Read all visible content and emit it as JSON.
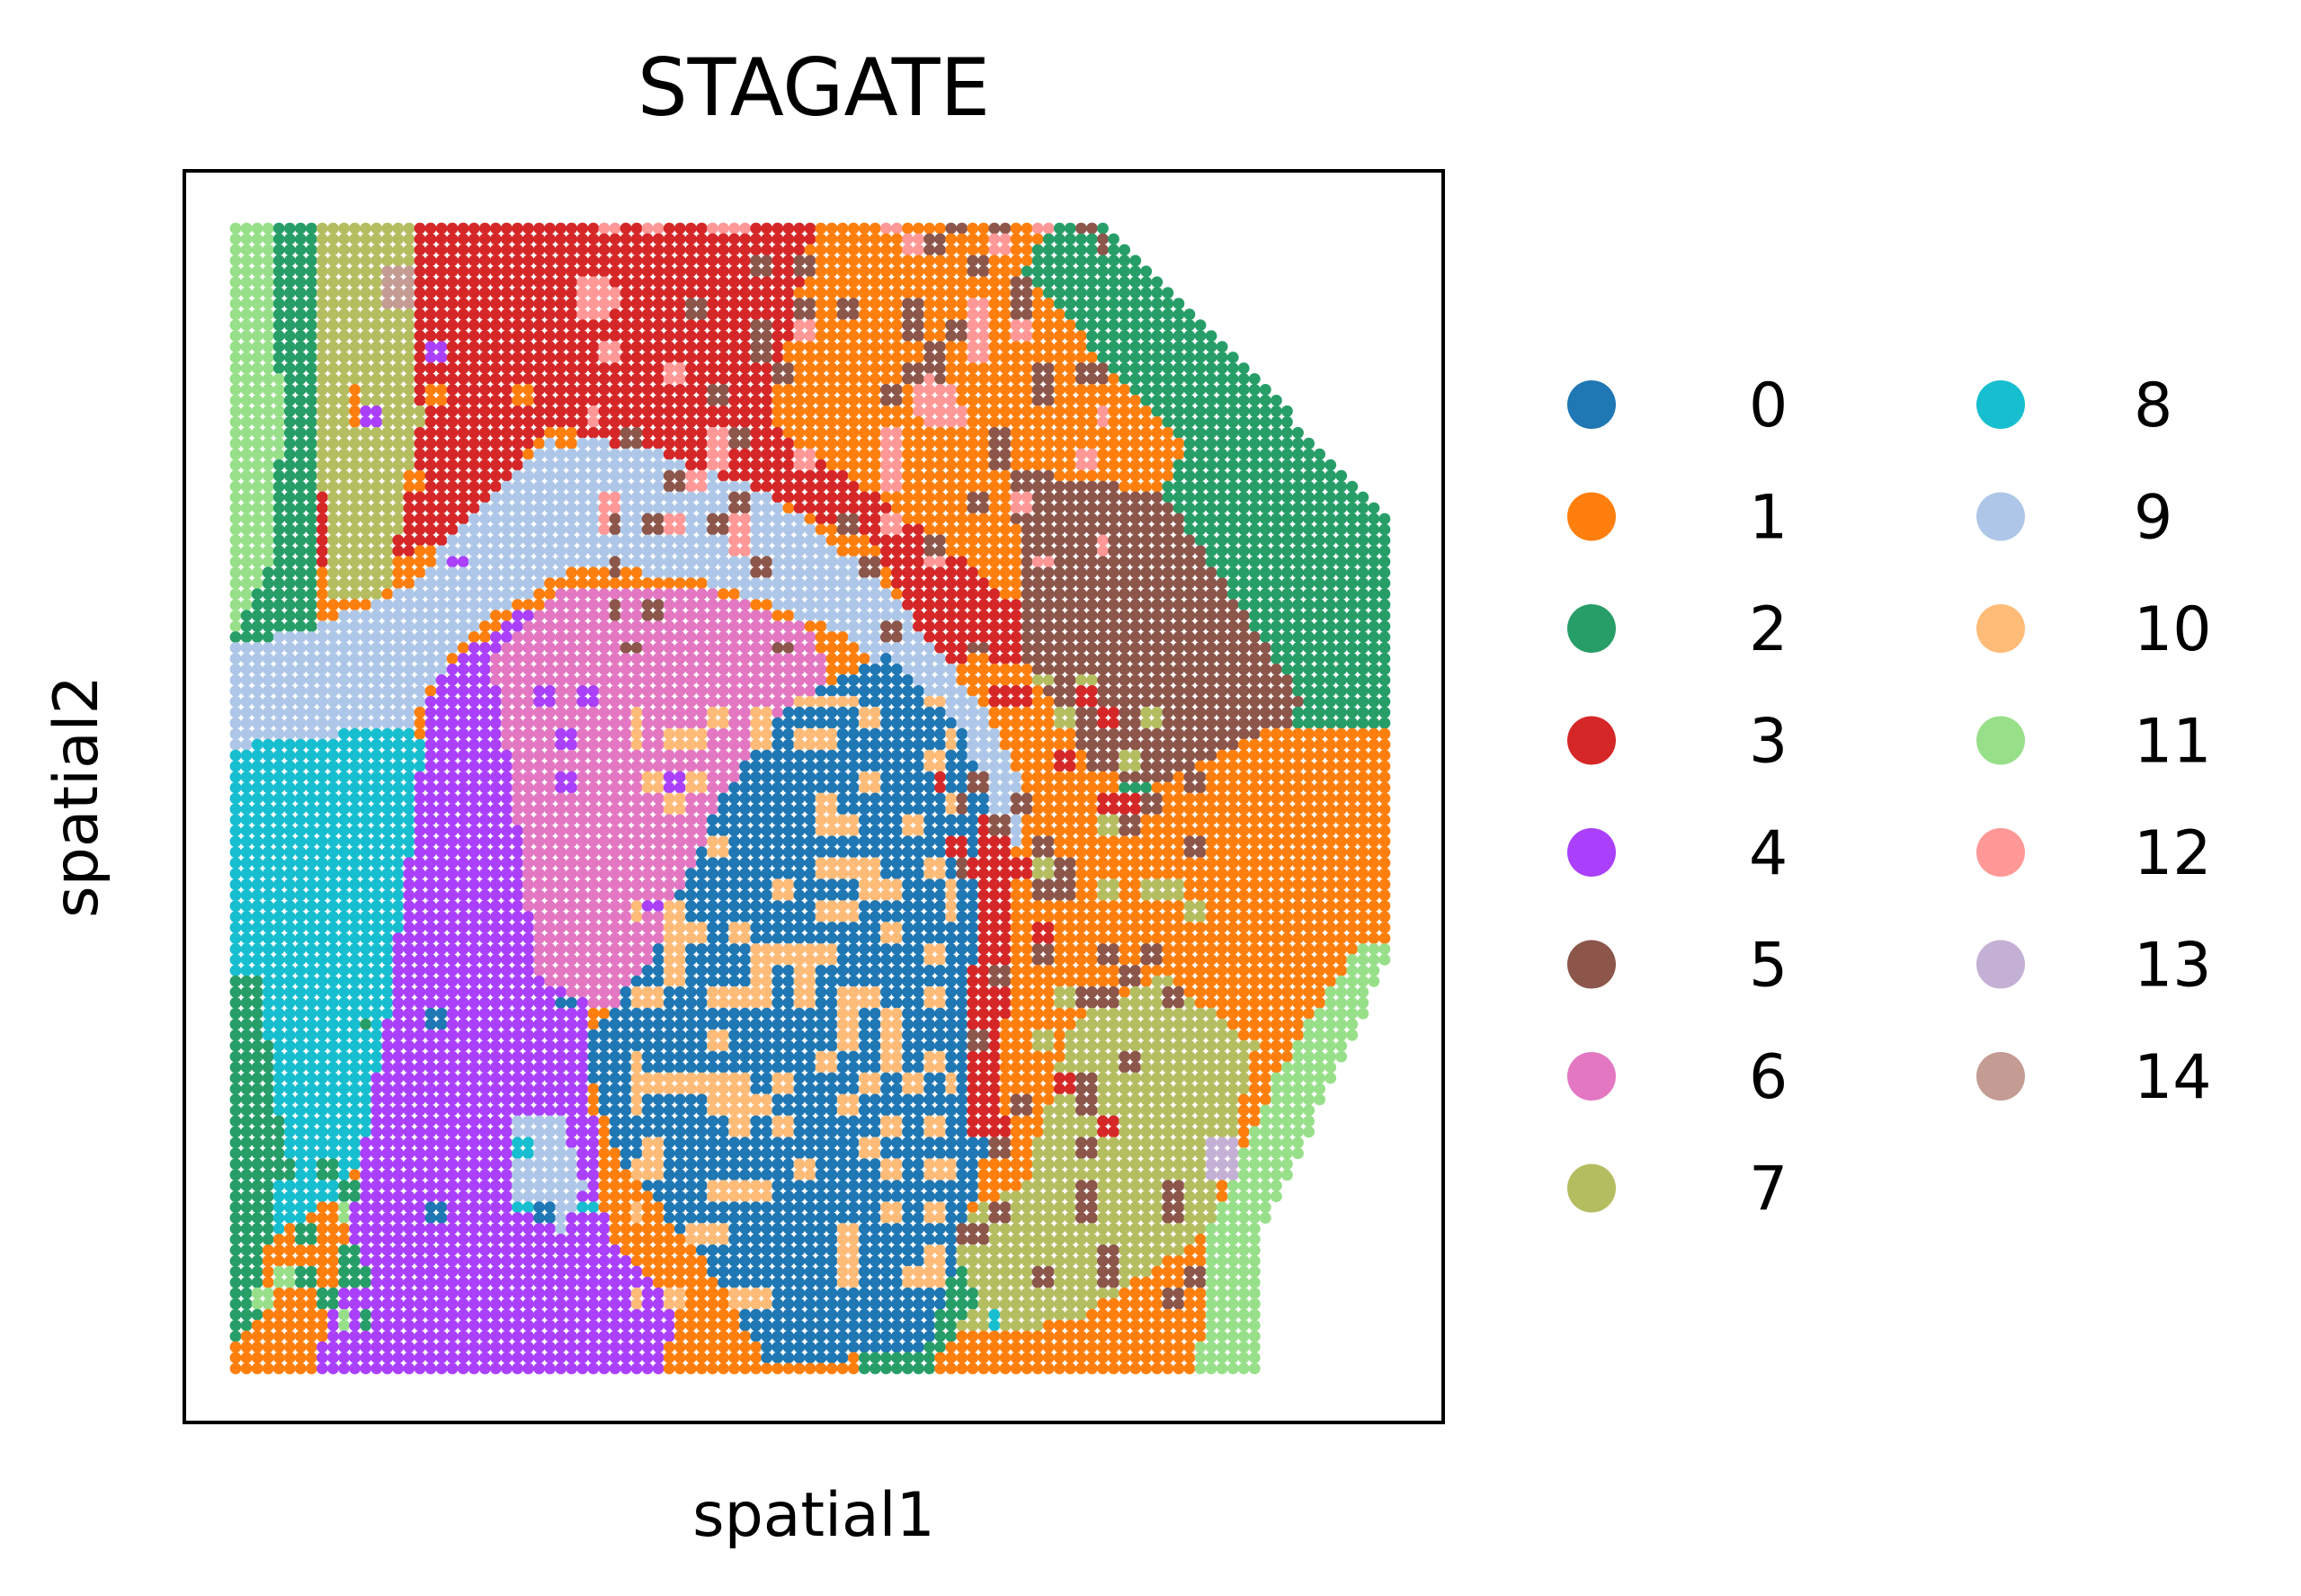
{
  "chart_data": {
    "type": "scatter",
    "title": "STAGATE",
    "xlabel": "spatial1",
    "ylabel": "spatial2",
    "xticks": [],
    "yticks": [],
    "grid": false,
    "legend": {
      "placement": "right",
      "columns": 2
    },
    "categories": [
      "0",
      "1",
      "2",
      "3",
      "4",
      "5",
      "6",
      "7",
      "8",
      "9",
      "10",
      "11",
      "12",
      "13",
      "14"
    ],
    "colors": [
      "#1f77b4",
      "#ff7f0e",
      "#279e68",
      "#d62728",
      "#aa40fc",
      "#8c564b",
      "#e377c2",
      "#b5bd61",
      "#17becf",
      "#aec7e8",
      "#ffbb78",
      "#98df8a",
      "#ff9896",
      "#c5b0d5",
      "#c49c94"
    ],
    "spot_grid": {
      "columns": 108,
      "rows": 108
    },
    "tissue_outline": [
      [
        0,
        1
      ],
      [
        0.745,
        1
      ],
      [
        1,
        0.735
      ],
      [
        1,
        0.37
      ],
      [
        0.88,
        0.105
      ],
      [
        0.88,
        0
      ],
      [
        0,
        0
      ]
    ],
    "regions": [
      {
        "category": "3",
        "polygon": [
          [
            0.05,
            1
          ],
          [
            0.6,
            1
          ],
          [
            0.67,
            0.85
          ],
          [
            0.85,
            0.72
          ],
          [
            0.92,
            0.6
          ],
          [
            0.6,
            0.62
          ],
          [
            0.55,
            0.72
          ],
          [
            0.4,
            0.78
          ],
          [
            0.27,
            0.82
          ],
          [
            0.2,
            0.72
          ],
          [
            0.1,
            0.7
          ],
          [
            0.05,
            0.7
          ]
        ]
      },
      {
        "category": "1",
        "polygon": [
          [
            0.5,
            1
          ],
          [
            0.745,
            1
          ],
          [
            1,
            0.735
          ],
          [
            1,
            0.62
          ],
          [
            0.87,
            0.58
          ],
          [
            0.68,
            0.66
          ],
          [
            0.55,
            0.76
          ],
          [
            0.46,
            0.82
          ]
        ]
      },
      {
        "category": "2",
        "polygon": [
          [
            0.7,
            1
          ],
          [
            0.745,
            1
          ],
          [
            1,
            0.735
          ],
          [
            1,
            0.45
          ],
          [
            0.9,
            0.4
          ],
          [
            0.76,
            0.5
          ],
          [
            0.74,
            0.68
          ],
          [
            0.82,
            0.8
          ],
          [
            0.68,
            0.95
          ]
        ]
      },
      {
        "category": "5",
        "polygon": [
          [
            0.67,
            0.78
          ],
          [
            0.8,
            0.76
          ],
          [
            0.92,
            0.58
          ],
          [
            0.86,
            0.48
          ],
          [
            0.74,
            0.52
          ],
          [
            0.68,
            0.62
          ]
        ]
      },
      {
        "category": "1",
        "polygon": [
          [
            0.66,
            0.48
          ],
          [
            0.78,
            0.5
          ],
          [
            0.9,
            0.56
          ],
          [
            1,
            0.56
          ],
          [
            1,
            0.36
          ],
          [
            0.88,
            0.12
          ],
          [
            0.78,
            0.06
          ],
          [
            0.66,
            0.12
          ]
        ]
      },
      {
        "category": "7",
        "polygon": [
          [
            0.72,
            0.3
          ],
          [
            0.8,
            0.34
          ],
          [
            0.88,
            0.28
          ],
          [
            0.84,
            0.12
          ],
          [
            0.72,
            0.04
          ],
          [
            0.55,
            0.02
          ],
          [
            0.6,
            0.12
          ],
          [
            0.68,
            0.16
          ]
        ]
      },
      {
        "category": "11",
        "polygon": [
          [
            1,
            0.37
          ],
          [
            0.88,
            0.105
          ],
          [
            0.88,
            0
          ],
          [
            0.83,
            0
          ],
          [
            0.84,
            0.12
          ],
          [
            0.9,
            0.26
          ],
          [
            0.97,
            0.37
          ]
        ]
      },
      {
        "category": "2",
        "polygon": [
          [
            0.5,
            0.14
          ],
          [
            0.6,
            0.14
          ],
          [
            0.64,
            0.06
          ],
          [
            0.6,
            0
          ],
          [
            0.54,
            0
          ]
        ]
      },
      {
        "category": "2",
        "polygon": [
          [
            0,
            1
          ],
          [
            0.07,
            1
          ],
          [
            0.07,
            0.66
          ],
          [
            0.06,
            0.62
          ],
          [
            0,
            0.62
          ]
        ]
      },
      {
        "category": "11",
        "polygon": [
          [
            0,
            1
          ],
          [
            0.03,
            1
          ],
          [
            0.04,
            0.82
          ],
          [
            0.03,
            0.7
          ],
          [
            0,
            0.64
          ]
        ]
      },
      {
        "category": "7",
        "polygon": [
          [
            0.07,
            1
          ],
          [
            0.15,
            1
          ],
          [
            0.16,
            0.82
          ],
          [
            0.13,
            0.67
          ],
          [
            0.08,
            0.67
          ],
          [
            0.07,
            0.85
          ]
        ]
      },
      {
        "category": "9",
        "polygon": [
          [
            0,
            0.63
          ],
          [
            0.06,
            0.64
          ],
          [
            0.15,
            0.68
          ],
          [
            0.22,
            0.76
          ],
          [
            0.27,
            0.81
          ],
          [
            0.35,
            0.8
          ],
          [
            0.46,
            0.76
          ],
          [
            0.56,
            0.68
          ],
          [
            0.64,
            0.58
          ],
          [
            0.68,
            0.5
          ],
          [
            0.68,
            0.45
          ],
          [
            0.64,
            0.47
          ],
          [
            0.6,
            0.56
          ],
          [
            0.52,
            0.64
          ],
          [
            0.42,
            0.68
          ],
          [
            0.3,
            0.7
          ],
          [
            0.2,
            0.64
          ],
          [
            0.15,
            0.56
          ],
          [
            0,
            0.54
          ]
        ]
      },
      {
        "category": "8",
        "polygon": [
          [
            0,
            0.54
          ],
          [
            0.15,
            0.56
          ],
          [
            0.18,
            0.5
          ],
          [
            0.17,
            0.35
          ],
          [
            0.12,
            0.22
          ],
          [
            0.1,
            0.16
          ],
          [
            0.04,
            0.12
          ],
          [
            0,
            0.12
          ]
        ]
      },
      {
        "category": "2",
        "polygon": [
          [
            0,
            0.34
          ],
          [
            0.02,
            0.34
          ],
          [
            0.04,
            0.2
          ],
          [
            0.02,
            0.04
          ],
          [
            0,
            0.02
          ]
        ]
      },
      {
        "category": "4",
        "polygon": [
          [
            0.17,
            0.6
          ],
          [
            0.25,
            0.66
          ],
          [
            0.3,
            0.66
          ],
          [
            0.33,
            0.5
          ],
          [
            0.3,
            0.3
          ],
          [
            0.32,
            0.12
          ],
          [
            0.38,
            0.05
          ],
          [
            0.37,
            0
          ],
          [
            0.07,
            0
          ],
          [
            0.1,
            0.14
          ],
          [
            0.13,
            0.3
          ],
          [
            0.15,
            0.45
          ]
        ]
      },
      {
        "category": "6",
        "polygon": [
          [
            0.22,
            0.62
          ],
          [
            0.28,
            0.68
          ],
          [
            0.4,
            0.68
          ],
          [
            0.5,
            0.64
          ],
          [
            0.52,
            0.56
          ],
          [
            0.46,
            0.5
          ],
          [
            0.4,
            0.36
          ],
          [
            0.34,
            0.3
          ],
          [
            0.26,
            0.34
          ],
          [
            0.24,
            0.5
          ]
        ]
      },
      {
        "category": "0",
        "polygon": [
          [
            0.36,
            0.36
          ],
          [
            0.42,
            0.5
          ],
          [
            0.48,
            0.58
          ],
          [
            0.56,
            0.62
          ],
          [
            0.63,
            0.55
          ],
          [
            0.66,
            0.45
          ],
          [
            0.65,
            0.2
          ],
          [
            0.6,
            0.02
          ],
          [
            0.46,
            0
          ],
          [
            0.4,
            0.1
          ],
          [
            0.33,
            0.18
          ],
          [
            0.3,
            0.28
          ]
        ]
      },
      {
        "category": "9",
        "polygon": [
          [
            0.24,
            0.22
          ],
          [
            0.28,
            0.22
          ],
          [
            0.3,
            0.16
          ],
          [
            0.28,
            0.12
          ],
          [
            0.24,
            0.14
          ]
        ]
      },
      {
        "category": "3",
        "polygon": [
          [
            0.64,
            0.48
          ],
          [
            0.67,
            0.48
          ],
          [
            0.66,
            0.2
          ],
          [
            0.63,
            0.2
          ]
        ]
      },
      {
        "category": "13",
        "polygon": [
          [
            0.835,
            0.2
          ],
          [
            0.86,
            0.2
          ],
          [
            0.86,
            0.16
          ],
          [
            0.835,
            0.16
          ]
        ]
      }
    ],
    "scatter_patches": [
      {
        "category": "10",
        "rect": [
          0.34,
          0.05,
          0.62,
          0.58
        ],
        "density": 0.22
      },
      {
        "category": "12",
        "rect": [
          0.3,
          0.7,
          0.75,
          1
        ],
        "density": 0.1
      },
      {
        "category": "5",
        "rect": [
          0.32,
          0.62,
          0.75,
          1
        ],
        "density": 0.14
      },
      {
        "category": "1",
        "rect": [
          0.1,
          0.7,
          0.3,
          1
        ],
        "density": 0.05
      },
      {
        "category": "3",
        "rect": [
          0.6,
          0.2,
          0.8,
          0.62
        ],
        "density": 0.07
      },
      {
        "category": "7",
        "rect": [
          0.68,
          0.28,
          0.84,
          0.6
        ],
        "density": 0.08
      },
      {
        "category": "5",
        "rect": [
          0.62,
          0.05,
          0.84,
          0.52
        ],
        "density": 0.12
      },
      {
        "category": "2",
        "rect": [
          0.0,
          0.0,
          0.12,
          0.3
        ],
        "density": 0.12
      },
      {
        "category": "11",
        "rect": [
          0.0,
          0.02,
          0.1,
          0.18
        ],
        "density": 0.06
      },
      {
        "category": "8",
        "rect": [
          0.5,
          0.0,
          0.66,
          0.08
        ],
        "density": 0.05
      },
      {
        "category": "4",
        "rect": [
          0.26,
          0.4,
          0.4,
          0.62
        ],
        "density": 0.06
      },
      {
        "category": "4",
        "rect": [
          0.05,
          0.7,
          0.25,
          0.9
        ],
        "density": 0.02
      },
      {
        "category": "8",
        "rect": [
          0.24,
          0.14,
          0.32,
          0.2
        ],
        "density": 0.12
      },
      {
        "category": "0",
        "rect": [
          0.06,
          0.03,
          0.36,
          0.32
        ],
        "density": 0.02
      }
    ],
    "point_blobs": [
      {
        "category": "12",
        "center": [
          0.31,
          0.93
        ],
        "radius": 0.02
      },
      {
        "category": "14",
        "center": [
          0.14,
          0.94
        ],
        "radius": 0.018
      },
      {
        "category": "12",
        "center": [
          0.6,
          0.84
        ],
        "radius": 0.02
      }
    ]
  }
}
